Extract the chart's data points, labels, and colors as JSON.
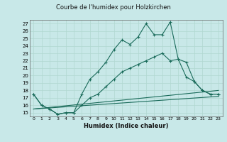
{
  "title": "Courbe de l'humidex pour Holzkirchen",
  "xlabel": "Humidex (Indice chaleur)",
  "bg_color": "#c8e8e8",
  "grid_color": "#b0d8d0",
  "line_color": "#1a6b5a",
  "xlim": [
    -0.5,
    23.5
  ],
  "ylim": [
    14.5,
    27.5
  ],
  "xticks": [
    0,
    1,
    2,
    3,
    4,
    5,
    6,
    7,
    8,
    9,
    10,
    11,
    12,
    13,
    14,
    15,
    16,
    17,
    18,
    19,
    20,
    21,
    22,
    23
  ],
  "yticks": [
    15,
    16,
    17,
    18,
    19,
    20,
    21,
    22,
    23,
    24,
    25,
    26,
    27
  ],
  "line1_x": [
    0,
    1,
    2,
    3,
    4,
    5,
    6,
    7,
    8,
    9,
    10,
    11,
    12,
    13,
    14,
    15,
    16,
    17,
    18,
    19,
    20,
    21,
    22,
    23
  ],
  "line1_y": [
    17.5,
    16.0,
    15.5,
    14.8,
    15.0,
    15.0,
    17.5,
    19.5,
    20.5,
    21.8,
    23.5,
    24.8,
    24.2,
    25.2,
    27.0,
    25.5,
    25.5,
    27.2,
    22.2,
    19.8,
    19.2,
    18.0,
    17.5,
    17.5
  ],
  "line2_x": [
    0,
    1,
    2,
    3,
    4,
    5,
    6,
    7,
    8,
    9,
    10,
    11,
    12,
    13,
    14,
    15,
    16,
    17,
    18,
    19,
    20,
    21,
    22,
    23
  ],
  "line2_y": [
    17.5,
    16.0,
    15.5,
    14.8,
    15.0,
    15.0,
    16.0,
    17.0,
    17.5,
    18.5,
    19.5,
    20.5,
    21.0,
    21.5,
    22.0,
    22.5,
    23.0,
    22.0,
    22.2,
    21.8,
    19.2,
    18.0,
    17.5,
    17.5
  ],
  "line3_x": [
    0,
    23
  ],
  "line3_y": [
    15.5,
    18.0
  ],
  "line4_x": [
    0,
    23
  ],
  "line4_y": [
    15.5,
    17.2
  ]
}
